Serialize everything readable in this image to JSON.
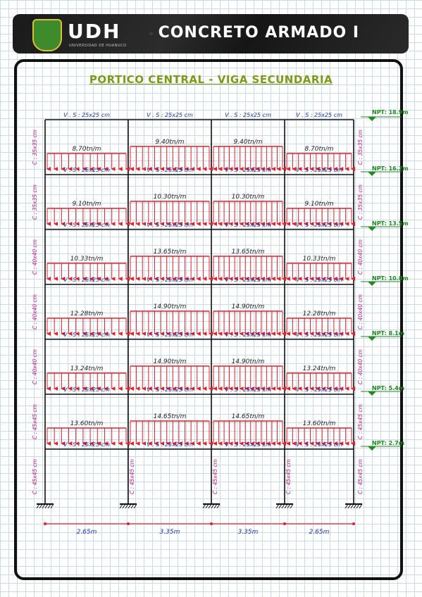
{
  "header": {
    "logo_text": "UDH",
    "logo_subtext": "UNIVERSIDAD DE HUANUCO",
    "title": "CONCRETO ARMADO I"
  },
  "main_title": "PORTICO CENTRAL - VIGA SECUNDARIA",
  "beam_label": "V . S : 25x25 cm",
  "bays": [
    {
      "span": "2.65m"
    },
    {
      "span": "3.35m"
    },
    {
      "span": "3.35m"
    },
    {
      "span": "2.65m"
    }
  ],
  "levels": [
    {
      "npt": "NPT: 18.9m",
      "loads": [
        "8.70tn/m",
        "9.40tn/m",
        "9.40tn/m",
        "8.70tn/m"
      ],
      "column_label": "C : 35x35 cm"
    },
    {
      "npt": "NPT: 16.2m",
      "loads": [
        "9.10tn/m",
        "10.30tn/m",
        "10.30tn/m",
        "9.10tn/m"
      ],
      "column_label": "C : 35x35 cm"
    },
    {
      "npt": "NPT: 13.5m",
      "loads": [
        "10.33tn/m",
        "13.65tn/m",
        "13.65tn/m",
        "10.33tn/m"
      ],
      "column_label": "C : 40x40 cm"
    },
    {
      "npt": "NPT: 10.8m",
      "loads": [
        "12.28tn/m",
        "14.90tn/m",
        "14.90tn/m",
        "12.28tn/m"
      ],
      "column_label": "C : 40x40 cm"
    },
    {
      "npt": "NPT: 8.1m",
      "loads": [
        "13.24tn/m",
        "14.90tn/m",
        "14.90tn/m",
        "13.24tn/m"
      ],
      "column_label": "C : 40x40 cm"
    },
    {
      "npt": "NPT: 5.4m",
      "loads": [
        "13.60tn/m",
        "14.65tn/m",
        "14.65tn/m",
        "13.60tn/m"
      ],
      "column_label": "C : 45x45 cm"
    },
    {
      "npt": "NPT: 2.7m",
      "loads": [],
      "column_label": "C : 45x45 cm"
    }
  ],
  "colors": {
    "load": "#e0202a",
    "beam_label": "#2038a8",
    "column_label": "#c0157f",
    "npt": "#1f8a1f",
    "title": "#7a9b1a",
    "frame": "#111111"
  }
}
